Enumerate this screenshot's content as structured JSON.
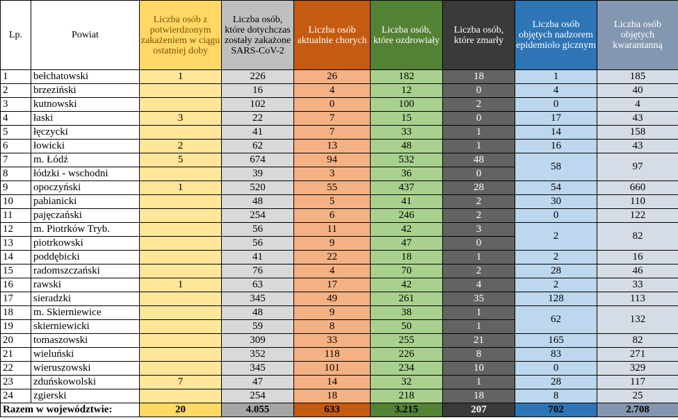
{
  "headers": {
    "lp": "Lp.",
    "powiat": "Powiat",
    "new_cases": "Liczba osób z potwierdzonym zakażeniem w ciągu ostatniej doby",
    "total_infected": "Liczba osób, które dotychczas zostały zakażone SARS-CoV-2",
    "active": "Liczba osób aktualnie chorych",
    "recovered": "Liczba osób, które ozdrowiały",
    "deaths": "Liczba osób, które zmarły",
    "supervision": "Liczba osób objętych nadzorem epidemiolo gicznym",
    "quarantine": "Liczba osób objętych kwarantanną"
  },
  "rows": [
    {
      "lp": "1",
      "name": "bełchatowski",
      "new": "1",
      "total": "226",
      "active": "26",
      "recovered": "182",
      "deaths": "18",
      "supervision": "1",
      "quarantine": "185"
    },
    {
      "lp": "2",
      "name": "brzeziński",
      "new": "",
      "total": "16",
      "active": "4",
      "recovered": "12",
      "deaths": "0",
      "supervision": "4",
      "quarantine": "40"
    },
    {
      "lp": "3",
      "name": "kutnowski",
      "new": "",
      "total": "102",
      "active": "0",
      "recovered": "100",
      "deaths": "2",
      "supervision": "0",
      "quarantine": "4"
    },
    {
      "lp": "4",
      "name": "łaski",
      "new": "3",
      "total": "22",
      "active": "7",
      "recovered": "15",
      "deaths": "0",
      "supervision": "17",
      "quarantine": "43"
    },
    {
      "lp": "5",
      "name": "łęczycki",
      "new": "",
      "total": "41",
      "active": "7",
      "recovered": "33",
      "deaths": "1",
      "supervision": "14",
      "quarantine": "158"
    },
    {
      "lp": "6",
      "name": "łowicki",
      "new": "2",
      "total": "62",
      "active": "13",
      "recovered": "48",
      "deaths": "1",
      "supervision": "16",
      "quarantine": "43"
    },
    {
      "lp": "7",
      "name": "m. Łódź",
      "new": "5",
      "total": "674",
      "active": "94",
      "recovered": "532",
      "deaths": "48",
      "supervision": "58",
      "quarantine": "97"
    },
    {
      "lp": "8",
      "name": "łódzki - wschodni",
      "new": "",
      "total": "39",
      "active": "3",
      "recovered": "36",
      "deaths": "0"
    },
    {
      "lp": "9",
      "name": "opoczyński",
      "new": "1",
      "total": "520",
      "active": "55",
      "recovered": "437",
      "deaths": "28",
      "supervision": "54",
      "quarantine": "660"
    },
    {
      "lp": "10",
      "name": "pabianicki",
      "new": "",
      "total": "48",
      "active": "5",
      "recovered": "41",
      "deaths": "2",
      "supervision": "30",
      "quarantine": "110"
    },
    {
      "lp": "11",
      "name": "pajęczański",
      "new": "",
      "total": "254",
      "active": "6",
      "recovered": "246",
      "deaths": "2",
      "supervision": "0",
      "quarantine": "122"
    },
    {
      "lp": "12",
      "name": "m. Piotrków Tryb.",
      "new": "",
      "total": "56",
      "active": "11",
      "recovered": "42",
      "deaths": "3",
      "supervision": "2",
      "quarantine": "82"
    },
    {
      "lp": "13",
      "name": "piotrkowski",
      "new": "",
      "total": "56",
      "active": "9",
      "recovered": "47",
      "deaths": "0"
    },
    {
      "lp": "14",
      "name": "poddębicki",
      "new": "",
      "total": "41",
      "active": "22",
      "recovered": "18",
      "deaths": "1",
      "supervision": "2",
      "quarantine": "16"
    },
    {
      "lp": "15",
      "name": "radomszczański",
      "new": "",
      "total": "76",
      "active": "4",
      "recovered": "70",
      "deaths": "2",
      "supervision": "28",
      "quarantine": "46"
    },
    {
      "lp": "16",
      "name": "rawski",
      "new": "1",
      "total": "63",
      "active": "17",
      "recovered": "42",
      "deaths": "4",
      "supervision": "2",
      "quarantine": "33"
    },
    {
      "lp": "17",
      "name": "sieradzki",
      "new": "",
      "total": "345",
      "active": "49",
      "recovered": "261",
      "deaths": "35",
      "supervision": "128",
      "quarantine": "113"
    },
    {
      "lp": "18",
      "name": "m. Skierniewice",
      "new": "",
      "total": "48",
      "active": "9",
      "recovered": "38",
      "deaths": "1",
      "supervision": "62",
      "quarantine": "132"
    },
    {
      "lp": "19",
      "name": "skierniewicki",
      "new": "",
      "total": "59",
      "active": "8",
      "recovered": "50",
      "deaths": "1"
    },
    {
      "lp": "20",
      "name": "tomaszowski",
      "new": "",
      "total": "309",
      "active": "33",
      "recovered": "255",
      "deaths": "21",
      "supervision": "165",
      "quarantine": "82"
    },
    {
      "lp": "21",
      "name": "wieluński",
      "new": "",
      "total": "352",
      "active": "118",
      "recovered": "226",
      "deaths": "8",
      "supervision": "83",
      "quarantine": "271"
    },
    {
      "lp": "22",
      "name": "wieruszowski",
      "new": "",
      "total": "345",
      "active": "101",
      "recovered": "234",
      "deaths": "10",
      "supervision": "0",
      "quarantine": "329"
    },
    {
      "lp": "23",
      "name": "zduńskowolski",
      "new": "7",
      "total": "47",
      "active": "14",
      "recovered": "32",
      "deaths": "1",
      "supervision": "28",
      "quarantine": "117"
    },
    {
      "lp": "24",
      "name": "zgierski",
      "new": "",
      "total": "254",
      "active": "18",
      "recovered": "218",
      "deaths": "18",
      "supervision": "8",
      "quarantine": "25"
    }
  ],
  "totals": {
    "label": "Razem w województwie:",
    "new": "20",
    "total": "4.055",
    "active": "633",
    "recovered": "3.215",
    "deaths": "207",
    "supervision": "702",
    "quarantine": "2.708"
  },
  "colors": {
    "new_header": "#ffd966",
    "total_header": "#bfbfbf",
    "active_header": "#c55a11",
    "recovered_header": "#548235",
    "deaths_header": "#3a3a3a",
    "supervision_header": "#2e75b6",
    "quarantine_header": "#8497b0"
  }
}
